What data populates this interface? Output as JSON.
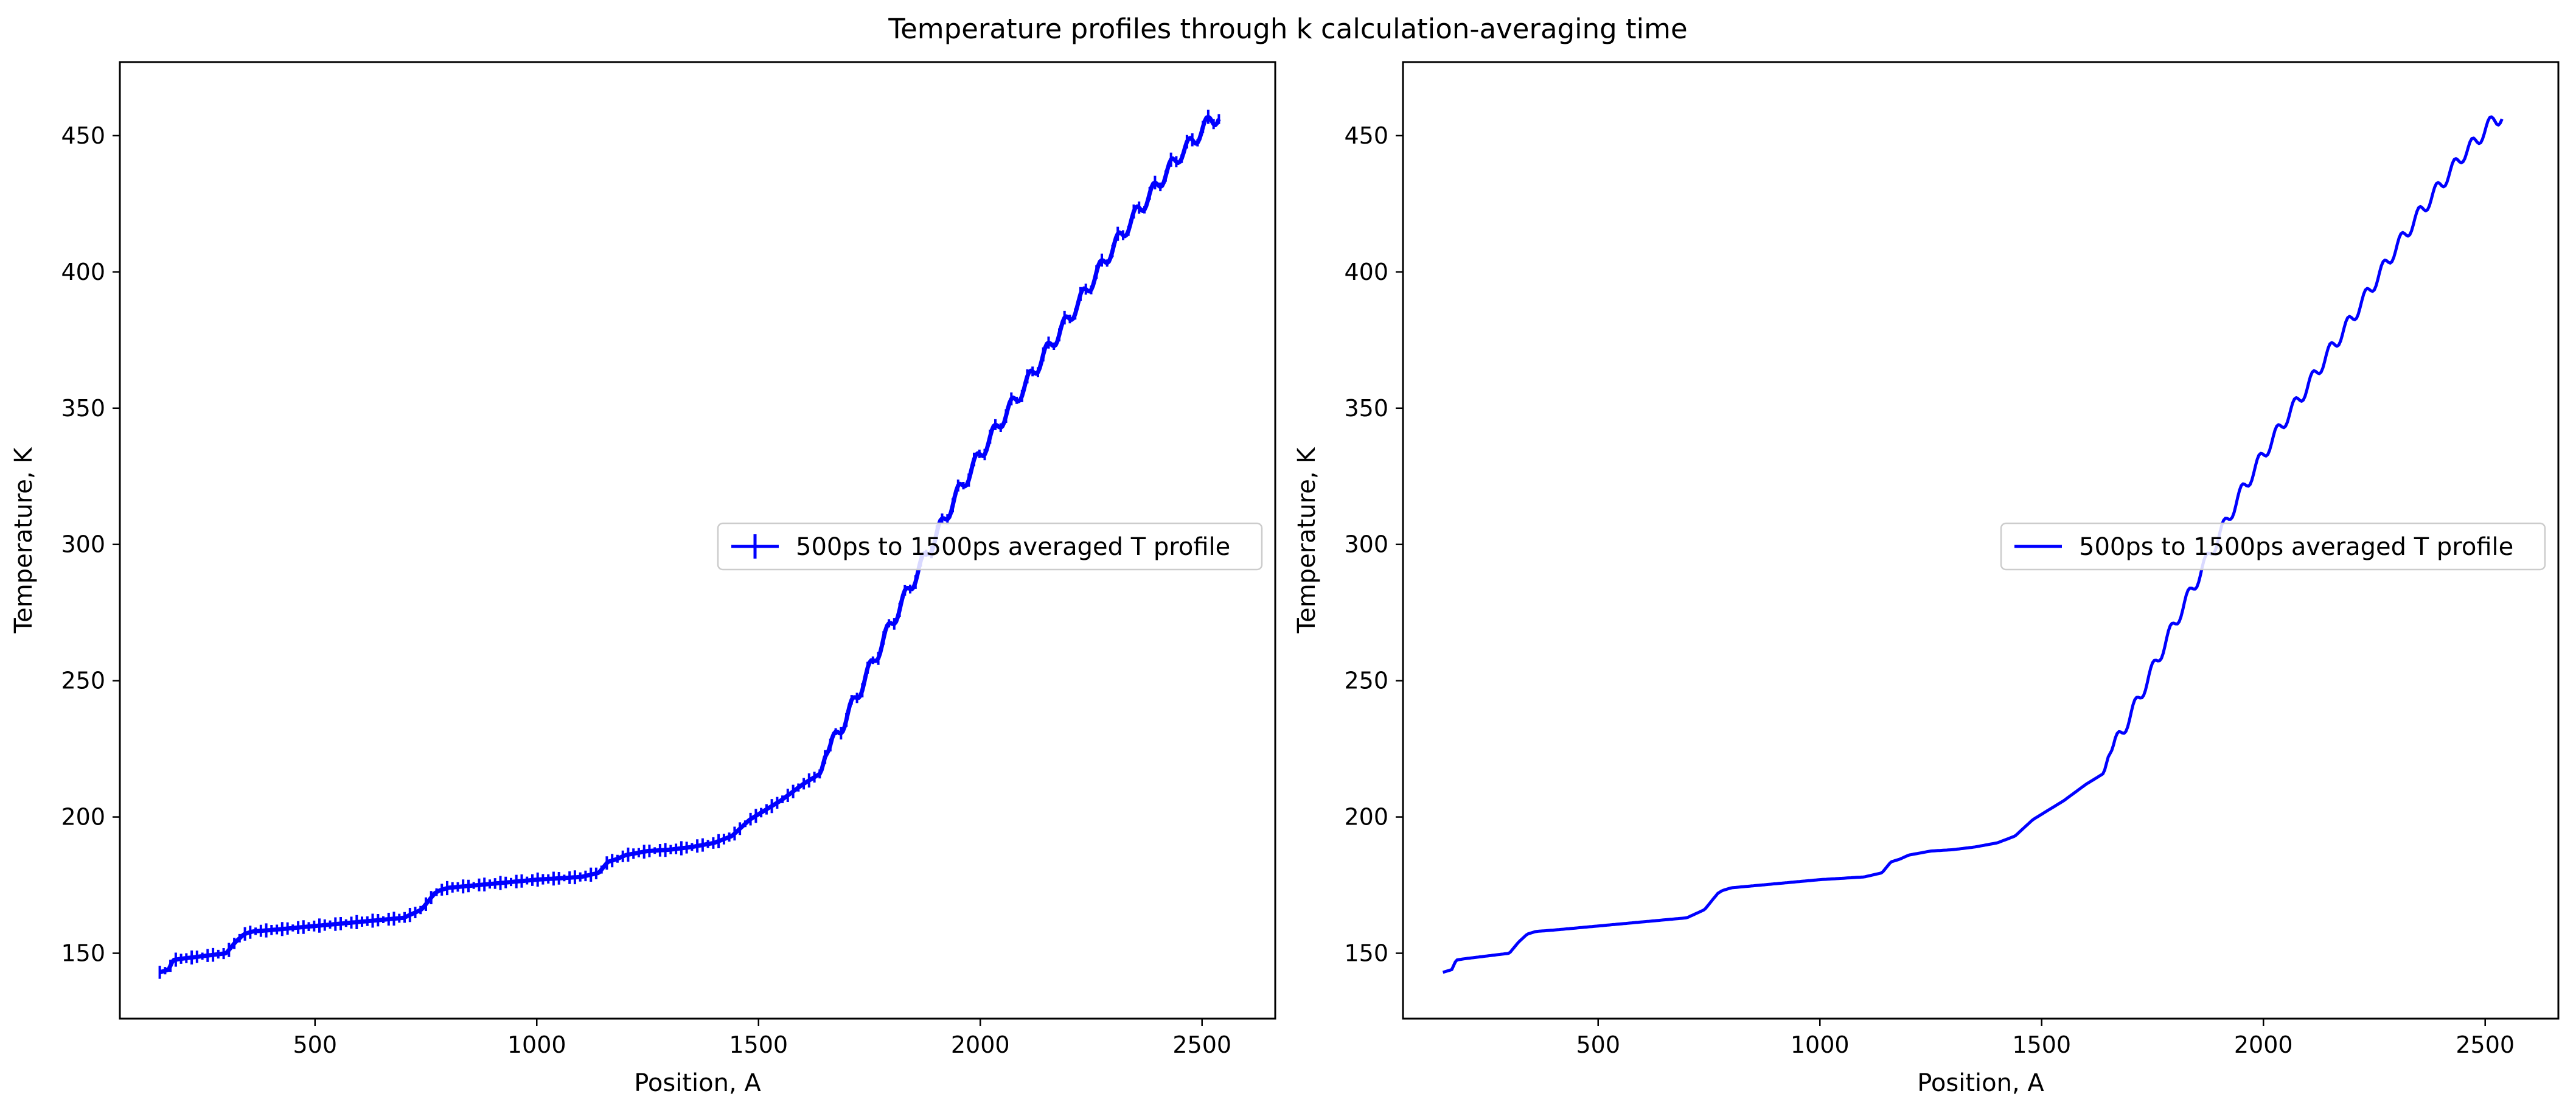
{
  "figure": {
    "title": "Temperature profiles through k calculation-averaging time"
  },
  "chart_data": [
    {
      "type": "line",
      "errorbars": true,
      "xlabel": "Position, A",
      "ylabel": "Temperature, K",
      "xlim": [
        60,
        2665
      ],
      "ylim": [
        126,
        477
      ],
      "xticks": [
        500,
        1000,
        1500,
        2000,
        2500
      ],
      "yticks": [
        150,
        200,
        250,
        300,
        350,
        400,
        450
      ],
      "legend_position": "center-right",
      "series": [
        {
          "name": "500ps to 1500ps averaged T profile",
          "color": "#0000ff"
        }
      ]
    },
    {
      "type": "line",
      "errorbars": false,
      "xlabel": "Position, A",
      "ylabel": "Temperature, K",
      "xlim": [
        60,
        2665
      ],
      "ylim": [
        126,
        477
      ],
      "xticks": [
        500,
        1000,
        1500,
        2000,
        2500
      ],
      "yticks": [
        150,
        200,
        250,
        300,
        350,
        400,
        450
      ],
      "legend_position": "center-right",
      "series": [
        {
          "name": "500ps to 1500ps averaged T profile",
          "color": "#0000ff"
        }
      ]
    }
  ],
  "profile": {
    "x": [
      150,
      170,
      180,
      200,
      250,
      300,
      320,
      340,
      360,
      400,
      500,
      600,
      700,
      740,
      770,
      780,
      790,
      800,
      900,
      1000,
      1100,
      1140,
      1160,
      1180,
      1200,
      1250,
      1300,
      1350,
      1400,
      1440,
      1460,
      1480,
      1500,
      1550,
      1600,
      1640,
      1650,
      1700,
      1750,
      1800,
      1850,
      1900,
      1950,
      2000,
      2050,
      2100,
      2150,
      2200,
      2250,
      2300,
      2350,
      2400,
      2450,
      2480,
      2500,
      2520,
      2540
    ],
    "y": [
      143,
      144,
      147.5,
      148,
      149,
      150,
      154,
      157,
      158,
      158.5,
      160,
      161.5,
      163,
      166,
      172,
      173,
      173.5,
      174,
      175.5,
      177,
      178,
      179.5,
      183.5,
      184.5,
      186,
      187.5,
      188,
      189,
      190.5,
      193,
      196,
      199,
      201,
      206,
      212,
      216,
      222,
      237,
      254,
      271,
      287,
      303,
      319,
      333,
      346,
      358,
      371,
      383,
      396,
      409,
      421,
      432,
      443,
      448,
      452,
      456,
      457
    ]
  }
}
